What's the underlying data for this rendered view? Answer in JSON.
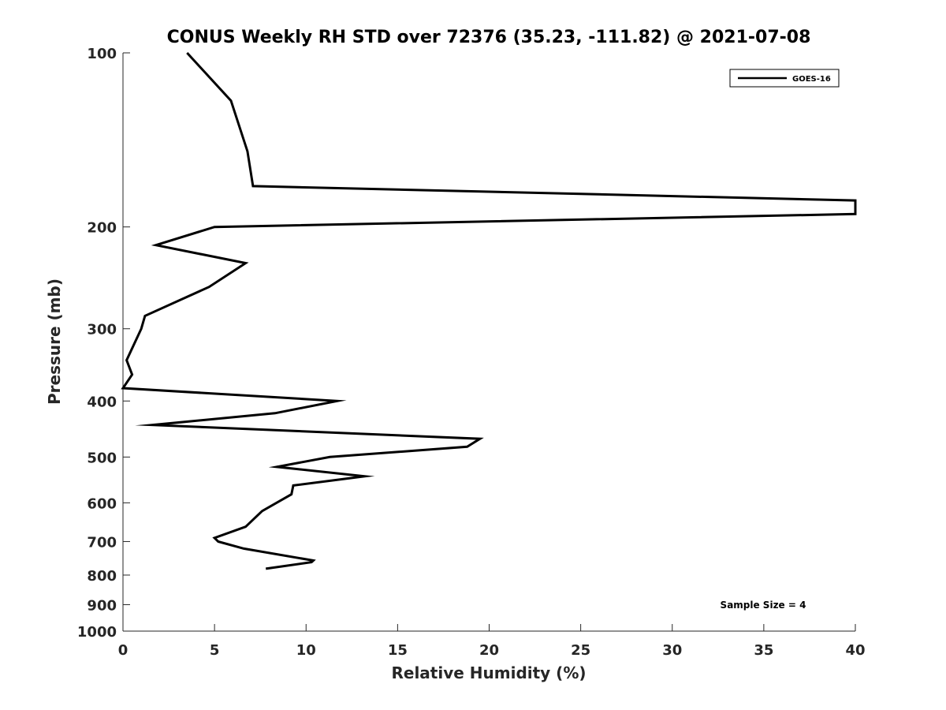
{
  "chart_data": {
    "type": "line",
    "title": "CONUS Weekly RH STD over 72376 (35.23, -111.82) @ 2021-07-08",
    "xlabel": "Relative Humidity (%)",
    "ylabel": "Pressure (mb)",
    "xlim": [
      0,
      40
    ],
    "ylim": [
      100,
      1000
    ],
    "y_scale": "log",
    "y_reversed": true,
    "x_ticks": [
      0,
      5,
      10,
      15,
      20,
      25,
      30,
      35,
      40
    ],
    "y_ticks": [
      100,
      200,
      300,
      400,
      500,
      600,
      700,
      800,
      900,
      1000
    ],
    "grid": false,
    "legend_position": "top-right",
    "series": [
      {
        "name": "GOES-16",
        "color": "#000000",
        "points": [
          [
            3.5,
            100
          ],
          [
            5.9,
            121
          ],
          [
            6.8,
            148
          ],
          [
            7.1,
            170
          ],
          [
            40.0,
            180
          ],
          [
            40.0,
            190
          ],
          [
            5.0,
            200
          ],
          [
            1.8,
            215
          ],
          [
            6.7,
            231
          ],
          [
            4.7,
            254
          ],
          [
            1.2,
            285
          ],
          [
            1.0,
            300
          ],
          [
            0.2,
            340
          ],
          [
            0.5,
            360
          ],
          [
            0.0,
            380
          ],
          [
            11.7,
            400
          ],
          [
            8.3,
            420
          ],
          [
            1.6,
            440
          ],
          [
            19.5,
            465
          ],
          [
            18.8,
            480
          ],
          [
            11.3,
            500
          ],
          [
            8.4,
            520
          ],
          [
            13.2,
            540
          ],
          [
            9.3,
            560
          ],
          [
            9.2,
            580
          ],
          [
            7.6,
            620
          ],
          [
            6.7,
            660
          ],
          [
            5.0,
            690
          ],
          [
            5.2,
            700
          ],
          [
            6.6,
            720
          ],
          [
            10.4,
            755
          ],
          [
            10.3,
            760
          ],
          [
            7.8,
            780
          ]
        ]
      }
    ],
    "annotations": [
      "Sample Size = 4"
    ]
  }
}
